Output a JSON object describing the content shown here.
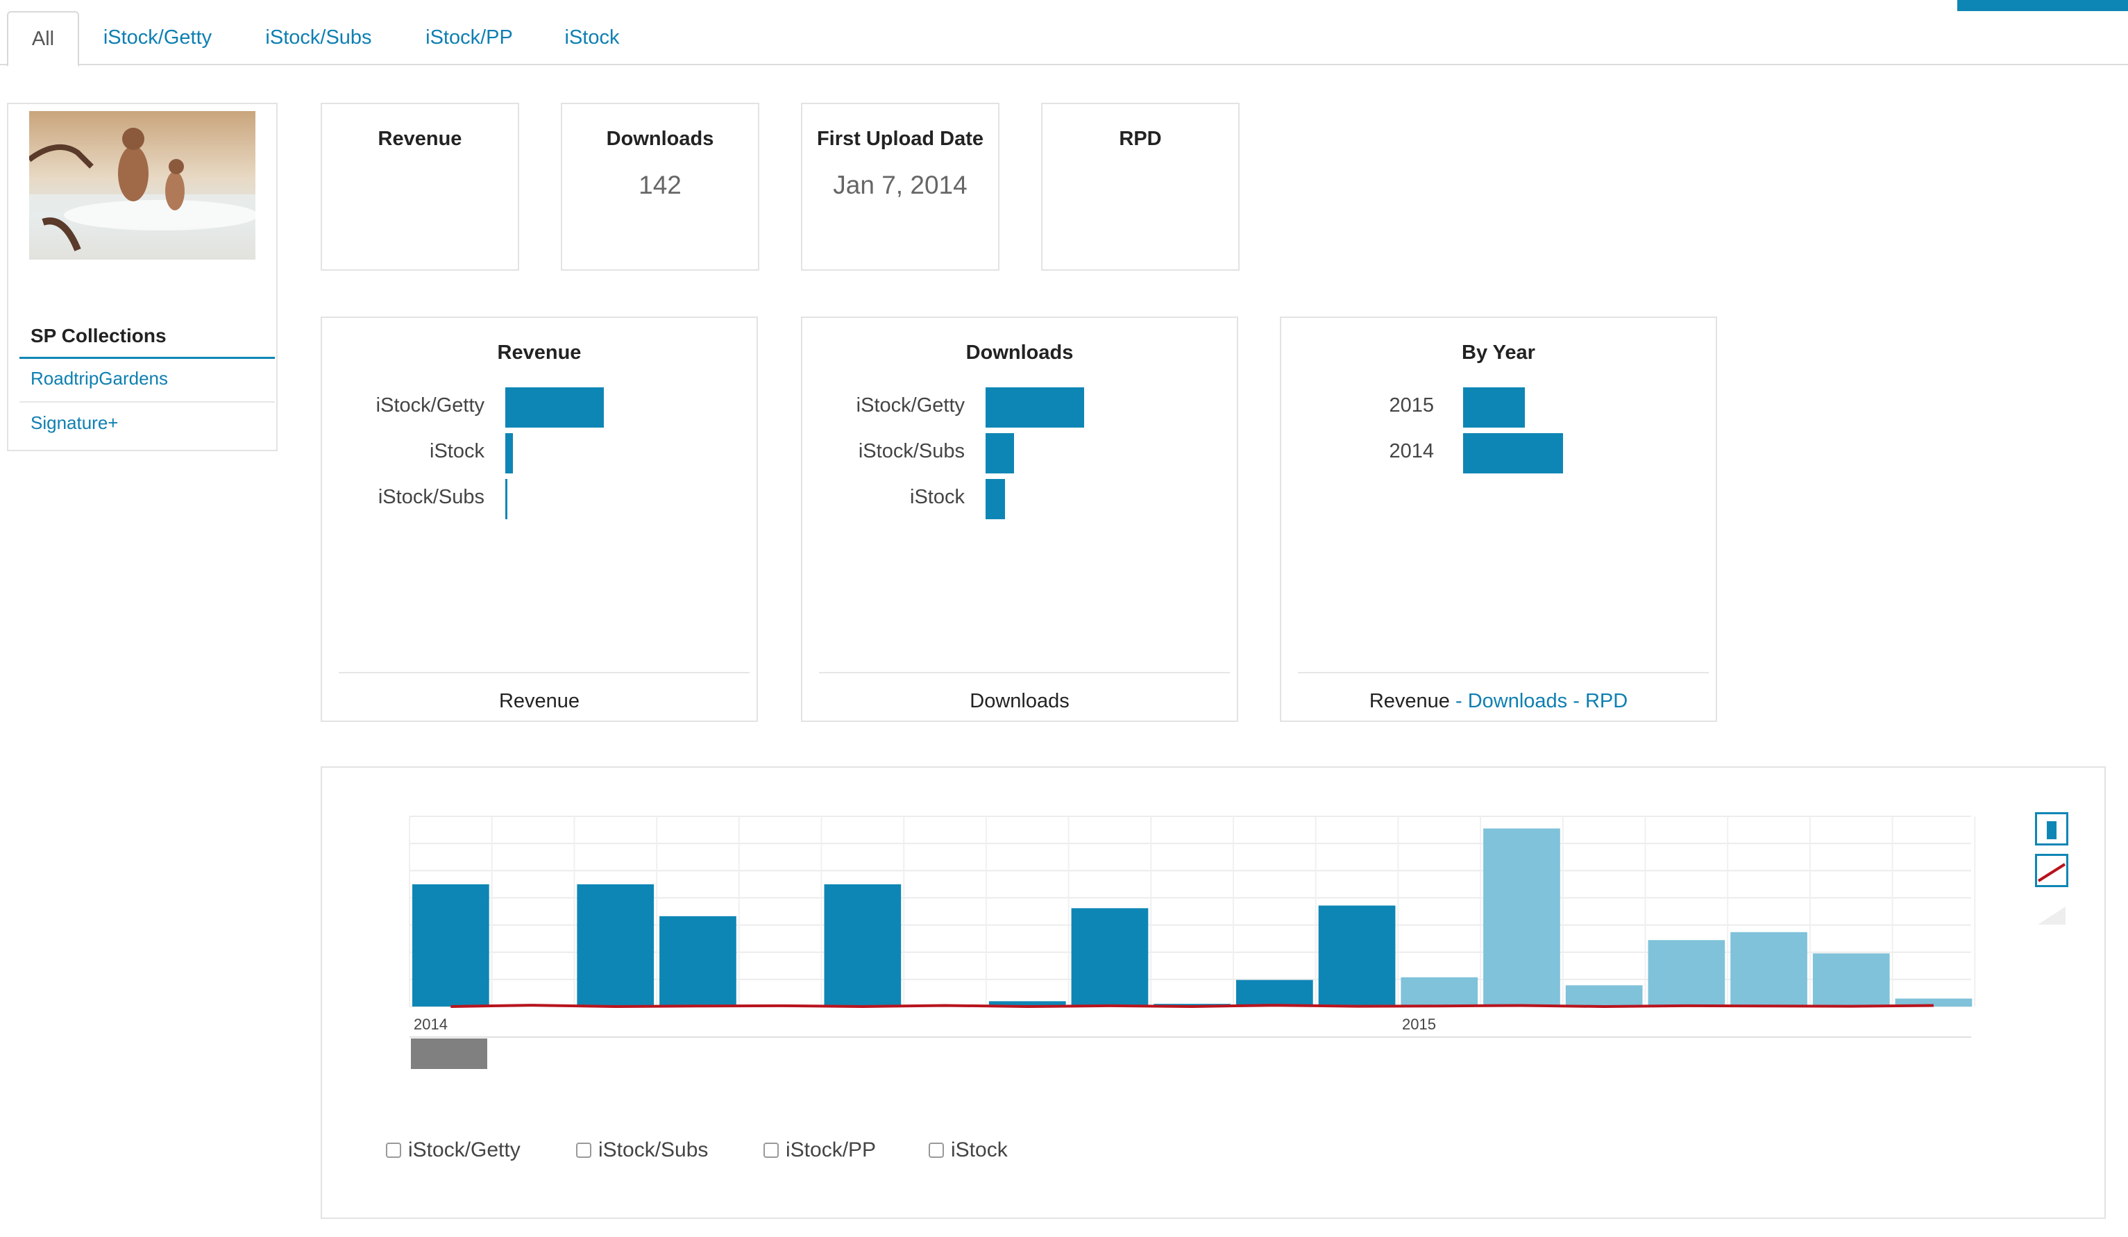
{
  "tabs": [
    "All",
    "iStock/Getty",
    "iStock/Subs",
    "iStock/PP",
    "iStock"
  ],
  "sidebar": {
    "title": "SP Collections",
    "items": [
      "RoadtripGardens",
      "Signature+"
    ]
  },
  "stats": [
    {
      "label": "Revenue",
      "value": ""
    },
    {
      "label": "Downloads",
      "value": "142"
    },
    {
      "label": "First Upload Date",
      "value": "Jan 7, 2014"
    },
    {
      "label": "RPD",
      "value": ""
    }
  ],
  "panels": {
    "revenue": {
      "title": "Revenue",
      "rows": [
        {
          "label": "iStock/Getty",
          "value": 100
        },
        {
          "label": "iStock",
          "value": 8
        },
        {
          "label": "iStock/Subs",
          "value": 2
        }
      ],
      "footer": "Revenue"
    },
    "downloads": {
      "title": "Downloads",
      "rows": [
        {
          "label": "iStock/Getty",
          "value": 100
        },
        {
          "label": "iStock/Subs",
          "value": 29
        },
        {
          "label": "iStock",
          "value": 20
        }
      ],
      "footer": "Downloads"
    },
    "byyear": {
      "title": "By Year",
      "rows": [
        {
          "label": "2015",
          "value": 62
        },
        {
          "label": "2014",
          "value": 100
        }
      ],
      "footer": {
        "current": "Revenue",
        "sep1": " - ",
        "link1": "Downloads",
        "sep2": " - ",
        "link2": "RPD"
      }
    }
  },
  "chart_data": {
    "type": "bar",
    "x_labels": [
      "2014",
      "2015"
    ],
    "bar_values": [
      46,
      0,
      46,
      34,
      0,
      46,
      0,
      2,
      37,
      1,
      10,
      38,
      11,
      67,
      8,
      25,
      28,
      20,
      3
    ],
    "highlight_from_index": 12,
    "line_values": [
      0,
      0.5,
      0,
      0.2,
      0.3,
      0,
      0.4,
      0,
      0.3,
      0,
      0.5,
      0.1,
      0.2,
      0.4,
      0,
      0.3,
      0.2,
      0.1,
      0.4
    ],
    "colors": {
      "bar": "#0e86b5",
      "bar_light": "#7fc2da",
      "line": "#b8141e",
      "selector": "#808080"
    }
  },
  "legend": [
    "iStock/Getty",
    "iStock/Subs",
    "iStock/PP",
    "iStock"
  ]
}
